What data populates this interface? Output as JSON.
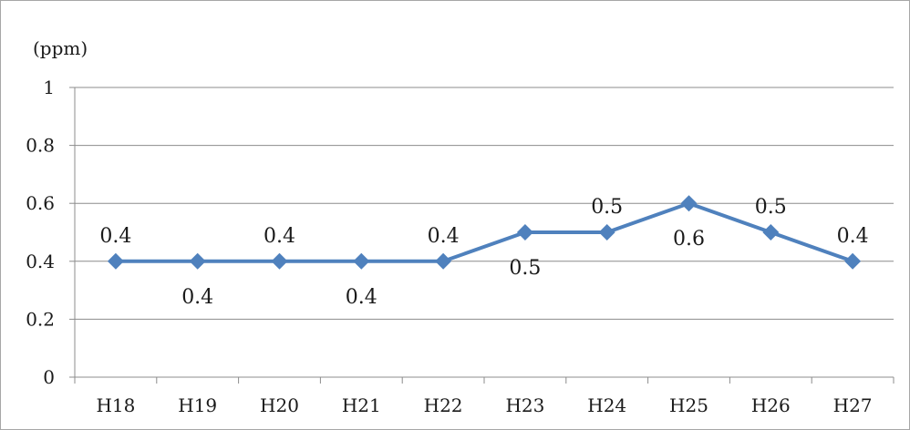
{
  "chart_data": {
    "type": "line",
    "y_unit_label": "(ppm)",
    "categories": [
      "H18",
      "H19",
      "H20",
      "H21",
      "H22",
      "H23",
      "H24",
      "H25",
      "H26",
      "H27"
    ],
    "series": [
      {
        "values": [
          0.4,
          0.4,
          0.4,
          0.4,
          0.4,
          0.5,
          0.5,
          0.6,
          0.5,
          0.4
        ],
        "color": "#4f81bd"
      }
    ],
    "data_labels": [
      "0.4",
      "0.4",
      "0.4",
      "0.4",
      "0.4",
      "0.5",
      "0.5",
      "0.6",
      "0.5",
      "0.4"
    ],
    "data_label_positions": [
      "above",
      "below",
      "above",
      "below",
      "above",
      "below",
      "above",
      "below",
      "above",
      "above"
    ],
    "ylim": [
      0,
      1
    ],
    "yticks": [
      0,
      0.2,
      0.4,
      0.6,
      0.8,
      1
    ],
    "ytick_labels": [
      "0",
      "0.2",
      "0.4",
      "0.6",
      "0.8",
      "1"
    ],
    "grid": true,
    "legend": "none",
    "gridline_color": "#8c8c8c",
    "axis_color": "#8c8c8c",
    "marker": "diamond"
  }
}
